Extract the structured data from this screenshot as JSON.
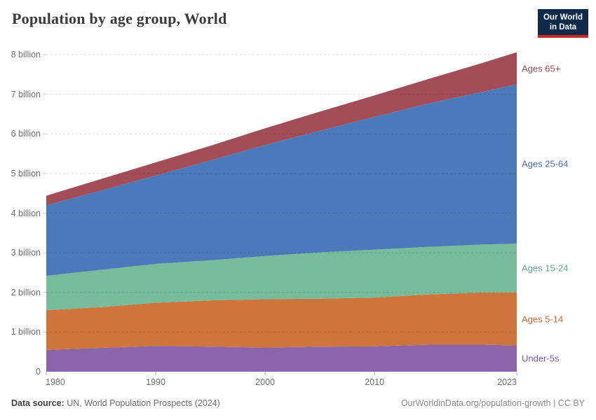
{
  "header": {
    "title": "Population by age group, World",
    "logo": {
      "line1": "Our World",
      "line2": "in Data",
      "bg_color": "#0E2A4D",
      "accent_color": "#CB2A20"
    }
  },
  "footer": {
    "source_label": "Data source:",
    "source_value": "UN, World Population Prospects (2024)",
    "credit": "OurWorldinData.org/population-growth | CC BY"
  },
  "chart_data": {
    "type": "area",
    "stacked": true,
    "title": "Population by age group, World",
    "xlabel": "",
    "ylabel": "",
    "unit": "billion people",
    "xlim": [
      1980,
      2023
    ],
    "ylim": [
      0,
      8
    ],
    "grid": "horizontal-dashed",
    "legend_position": "right",
    "x": [
      1980,
      1985,
      1990,
      1995,
      2000,
      2005,
      2010,
      2015,
      2020,
      2023
    ],
    "xticks": [
      {
        "value": 1980,
        "label": "1980"
      },
      {
        "value": 1990,
        "label": "1990"
      },
      {
        "value": 2000,
        "label": "2000"
      },
      {
        "value": 2010,
        "label": "2010"
      },
      {
        "value": 2023,
        "label": "2023"
      }
    ],
    "yticks": [
      {
        "value": 0,
        "label": "0"
      },
      {
        "value": 1,
        "label": "1 billion"
      },
      {
        "value": 2,
        "label": "2 billion"
      },
      {
        "value": 3,
        "label": "3 billion"
      },
      {
        "value": 4,
        "label": "4 billion"
      },
      {
        "value": 5,
        "label": "5 billion"
      },
      {
        "value": 6,
        "label": "6 billion"
      },
      {
        "value": 7,
        "label": "7 billion"
      },
      {
        "value": 8,
        "label": "8 billion"
      }
    ],
    "series": [
      {
        "name": "Under-5s",
        "fill_color": "#8C64AA",
        "label_color": "#7D55A0",
        "values": [
          0.55,
          0.6,
          0.65,
          0.63,
          0.61,
          0.63,
          0.64,
          0.68,
          0.68,
          0.66
        ]
      },
      {
        "name": "Ages 5-14",
        "fill_color": "#CD753C",
        "label_color": "#C8642D",
        "values": [
          1.0,
          1.03,
          1.09,
          1.17,
          1.22,
          1.21,
          1.23,
          1.27,
          1.32,
          1.34
        ]
      },
      {
        "name": "Ages 15-24",
        "fill_color": "#79BC9B",
        "label_color": "#5AAA8C",
        "values": [
          0.87,
          0.94,
          0.98,
          1.01,
          1.09,
          1.17,
          1.21,
          1.2,
          1.21,
          1.23
        ]
      },
      {
        "name": "Ages 25-64",
        "fill_color": "#4B79BA",
        "label_color": "#466FAF",
        "values": [
          1.78,
          2.0,
          2.23,
          2.52,
          2.8,
          3.07,
          3.35,
          3.62,
          3.86,
          4.02
        ]
      },
      {
        "name": "Ages 65+",
        "fill_color": "#A34D59",
        "label_color": "#9B4655",
        "values": [
          0.24,
          0.29,
          0.33,
          0.37,
          0.42,
          0.48,
          0.54,
          0.62,
          0.73,
          0.81
        ]
      }
    ]
  }
}
